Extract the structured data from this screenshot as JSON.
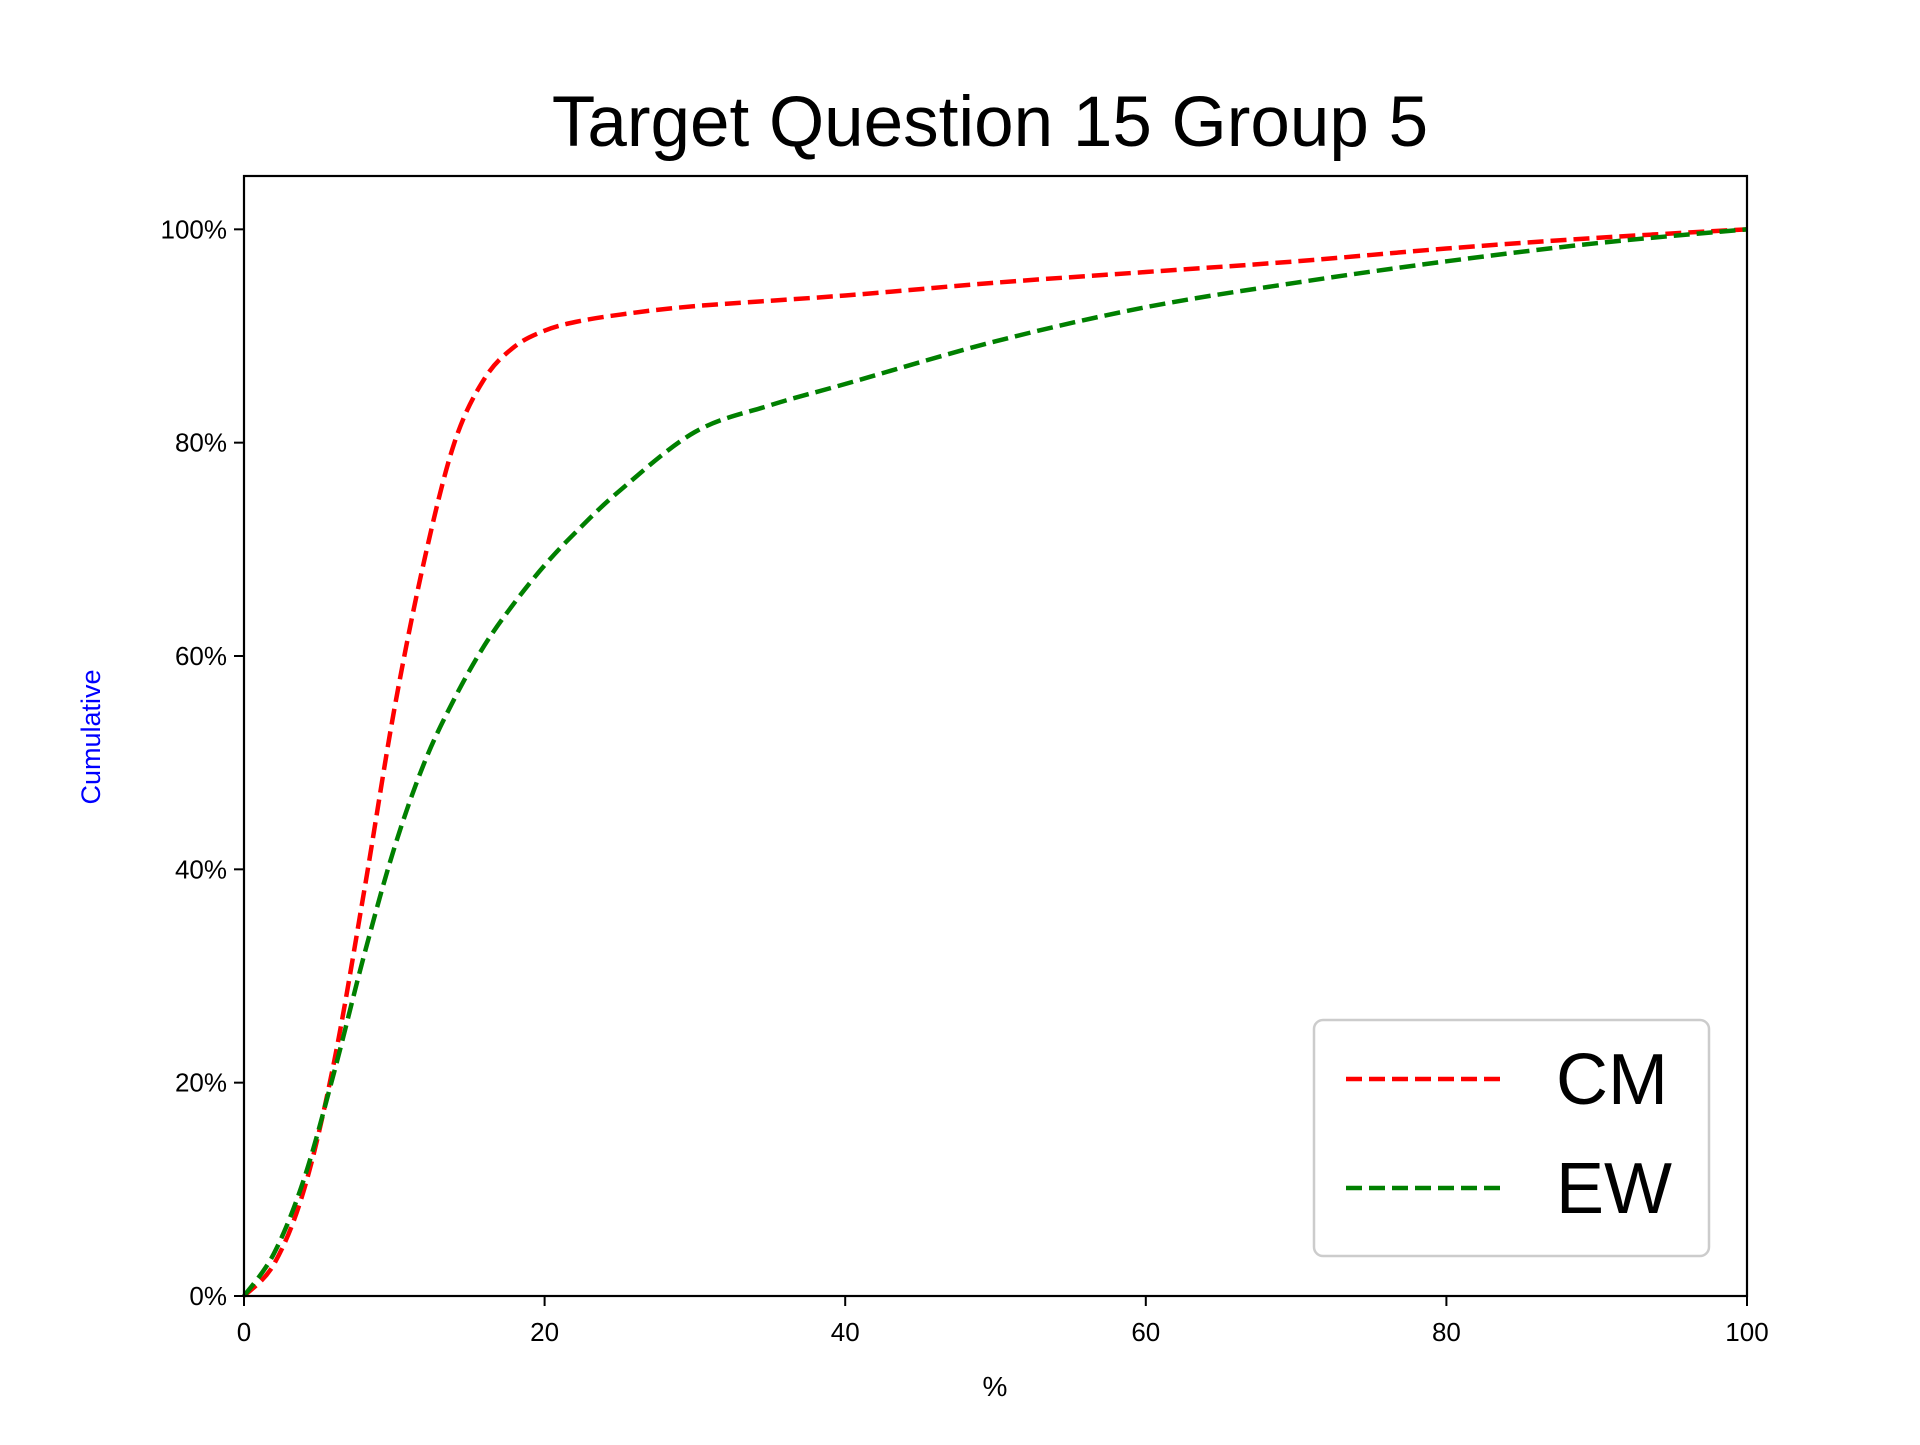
{
  "chart_data": {
    "type": "line",
    "title": "Target Question 15 Group 5",
    "xlabel": "%",
    "ylabel": "Cumulative",
    "ylabel_color": "#0000ff",
    "xlim": [
      0,
      100
    ],
    "ylim": [
      0,
      105
    ],
    "xticks": [
      0,
      20,
      40,
      60,
      80,
      100
    ],
    "xtick_labels": [
      "0",
      "20",
      "40",
      "60",
      "80",
      "100"
    ],
    "yticks": [
      0,
      20,
      40,
      60,
      80,
      100
    ],
    "ytick_labels": [
      "0%",
      "20%",
      "40%",
      "60%",
      "80%",
      "100%"
    ],
    "grid": false,
    "legend_position": "bottom-right",
    "line_style": "dashed",
    "series": [
      {
        "name": "CM",
        "color": "#ff0000",
        "x": [
          0,
          2,
          4,
          6,
          8,
          10,
          12,
          14,
          16,
          18,
          20,
          22,
          25,
          30,
          40,
          50,
          60,
          70,
          80,
          90,
          100
        ],
        "y": [
          0,
          3,
          10,
          22,
          38,
          55,
          69,
          80,
          86,
          89,
          90.5,
          91.3,
          92.0,
          92.8,
          93.8,
          95.0,
          96.0,
          97.0,
          98.2,
          99.2,
          100
        ]
      },
      {
        "name": "EW",
        "color": "#008000",
        "x": [
          0,
          2,
          4,
          6,
          8,
          10,
          12,
          14,
          16,
          18,
          20,
          22,
          25,
          30,
          35,
          40,
          50,
          60,
          70,
          80,
          90,
          100
        ],
        "y": [
          0,
          4,
          11,
          21,
          32,
          42,
          50,
          56,
          61,
          65,
          68.5,
          71.5,
          75.5,
          81,
          83.5,
          85.5,
          89.5,
          92.7,
          95,
          97,
          98.7,
          100
        ]
      }
    ]
  }
}
